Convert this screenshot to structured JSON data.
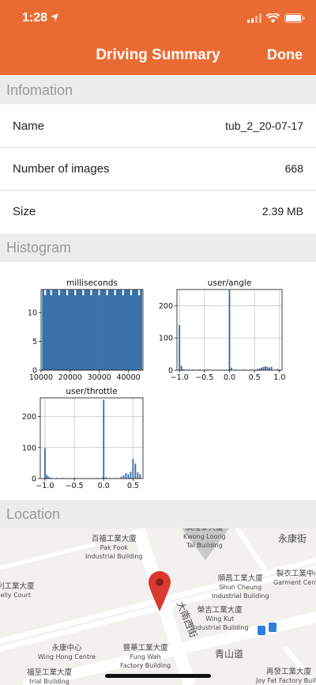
{
  "status_bar": {
    "time": "1:28"
  },
  "nav": {
    "title": "Driving Summary",
    "done_label": "Done"
  },
  "sections": {
    "info": "Infomation",
    "histogram": "Histogram",
    "location": "Location"
  },
  "info_rows": [
    {
      "label": "Name",
      "value": "tub_2_20-07-17"
    },
    {
      "label": "Number of images",
      "value": "668"
    },
    {
      "label": "Size",
      "value": "2.39 MB"
    }
  ],
  "colors": {
    "header": "#e96b33",
    "bar": "#3a72a8"
  },
  "chart_data": [
    {
      "type": "bar",
      "title": "milliseconds",
      "xlim": [
        10000,
        45000
      ],
      "ylim": [
        0,
        14
      ],
      "xticks": [
        "10000",
        "20000",
        "30000",
        "40000"
      ],
      "yticks": [
        "0",
        "5",
        "10"
      ],
      "values": [
        14,
        13,
        14,
        14,
        13,
        14,
        14,
        14,
        13,
        14,
        14,
        14,
        13,
        14,
        14,
        14,
        13,
        14,
        14,
        14,
        13,
        14,
        14,
        14,
        13,
        14,
        14,
        14,
        13,
        14,
        14,
        14,
        13,
        14,
        14,
        14,
        13,
        14,
        14,
        14,
        13,
        14,
        14,
        14,
        13,
        14,
        14,
        14,
        13,
        14
      ]
    },
    {
      "type": "bar",
      "title": "user/angle",
      "xlim": [
        -1.05,
        1.05
      ],
      "ylim": [
        0,
        250
      ],
      "xticks": [
        "−1.0",
        "−0.5",
        "0.0",
        "0.5",
        "1.0"
      ],
      "yticks": [
        "0",
        "100",
        "200"
      ],
      "x": [
        -1.0,
        -0.96,
        -0.92,
        -0.88,
        -0.84,
        -0.8,
        -0.72,
        -0.6,
        -0.44,
        -0.2,
        -0.04,
        0.0,
        0.04,
        0.12,
        0.3,
        0.44,
        0.56,
        0.6,
        0.64,
        0.68,
        0.72,
        0.76,
        0.8,
        0.84,
        0.96,
        1.0
      ],
      "values": [
        140,
        14,
        3,
        2,
        1,
        2,
        2,
        2,
        2,
        1,
        2,
        248,
        8,
        2,
        2,
        2,
        4,
        6,
        8,
        10,
        12,
        10,
        8,
        10,
        4,
        2
      ]
    },
    {
      "type": "bar",
      "title": "user/throttle",
      "xlim": [
        -1.08,
        0.67
      ],
      "ylim": [
        0,
        260
      ],
      "xticks": [
        "−1.0",
        "−0.5",
        "0.0",
        "0.5"
      ],
      "yticks": [
        "0",
        "100",
        "200"
      ],
      "x": [
        -1.0,
        -0.97,
        -0.94,
        -0.9,
        -0.8,
        -0.7,
        -0.5,
        -0.3,
        -0.1,
        -0.02,
        0.0,
        0.04,
        0.1,
        0.2,
        0.3,
        0.34,
        0.38,
        0.42,
        0.46,
        0.5,
        0.54,
        0.58,
        0.62
      ],
      "values": [
        98,
        12,
        6,
        3,
        2,
        2,
        2,
        1,
        2,
        3,
        253,
        4,
        2,
        2,
        6,
        10,
        18,
        14,
        22,
        63,
        48,
        20,
        14
      ]
    }
  ],
  "map": {
    "labels": [
      {
        "text": "百福工業大廈",
        "sub": "Pak Fook",
        "sub2": "Industrial Building"
      },
      {
        "text": "廣隆泰大廈",
        "sub": "Kwong Loong",
        "sub2": "Tai Building"
      },
      {
        "text": "永康街"
      },
      {
        "text": "製衣工業中心",
        "sub": "Garment Centre"
      },
      {
        "text": "順昌工業大廈",
        "sub": "Shun Cheung",
        "sub2": "Industrial Building"
      },
      {
        "text": "利工業大廈",
        "sub": "elly Court"
      },
      {
        "text": "榮吉工業大廈",
        "sub": "Wing Kut",
        "sub2": "Industrial Building"
      },
      {
        "text": "大南西街"
      },
      {
        "text": "永康中心",
        "sub": "Wing Hong Centre"
      },
      {
        "text": "豐華工業大廈",
        "sub": "Fung Wah",
        "sub2": "Factory Building"
      },
      {
        "text": "青山道"
      },
      {
        "text": "福至工業大廈",
        "sub": "trial Building"
      },
      {
        "text": "再發工業大廈",
        "sub": "Joy Fat Factory Buildi"
      }
    ]
  }
}
